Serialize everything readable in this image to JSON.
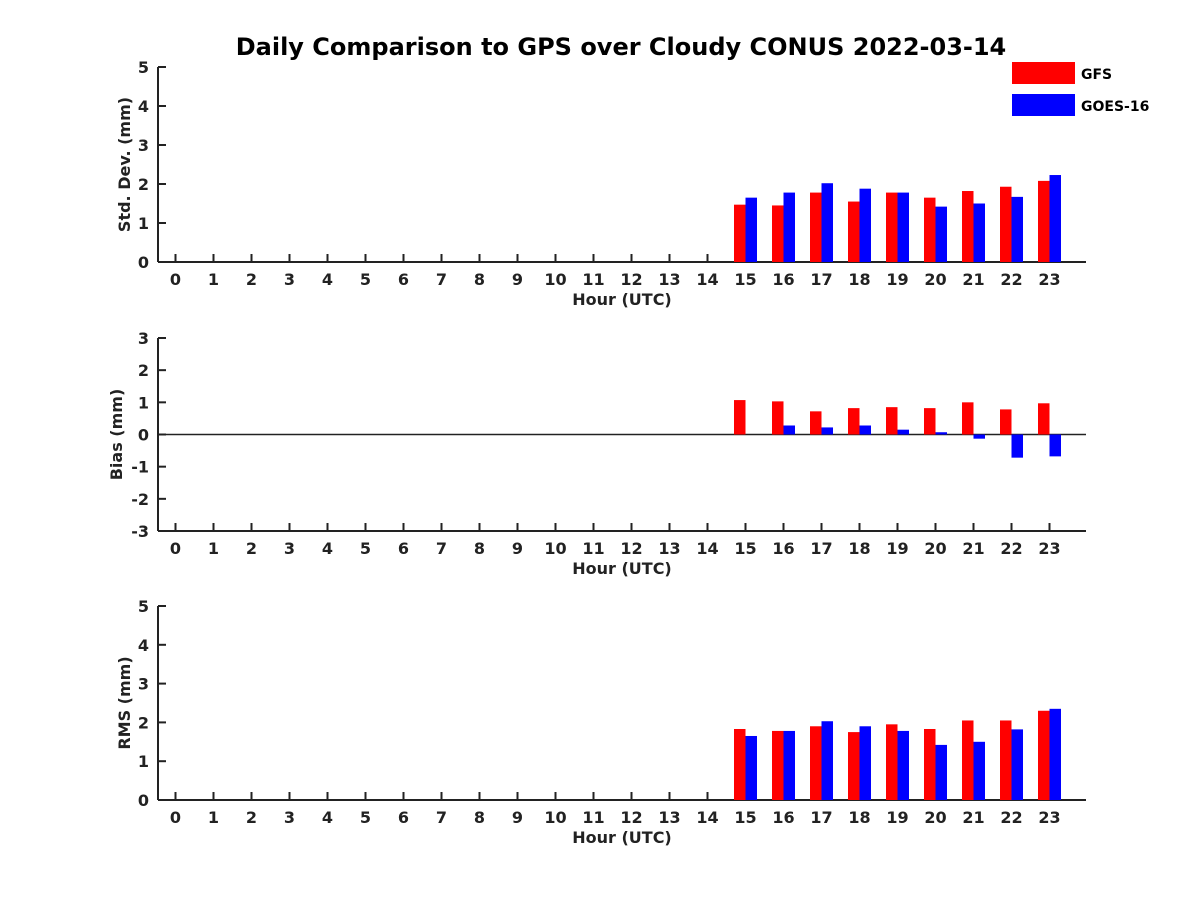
{
  "title": "Daily Comparison to GPS over Cloudy CONUS 2022-03-14",
  "colors": {
    "GFS": "#ff0000",
    "GOES-16": "#0000ff"
  },
  "legend": [
    "GFS",
    "GOES-16"
  ],
  "chart_data": [
    {
      "type": "bar",
      "name": "std-dev",
      "xlabel": "Hour (UTC)",
      "ylabel": "Std. Dev. (mm)",
      "ylim": [
        0,
        5
      ],
      "yticks": [
        0,
        1,
        2,
        3,
        4,
        5
      ],
      "categories": [
        "0",
        "1",
        "2",
        "3",
        "4",
        "5",
        "6",
        "7",
        "8",
        "9",
        "10",
        "11",
        "12",
        "13",
        "14",
        "15",
        "16",
        "17",
        "18",
        "19",
        "20",
        "21",
        "22",
        "23"
      ],
      "series": [
        {
          "name": "GFS",
          "values": [
            null,
            null,
            null,
            null,
            null,
            null,
            null,
            null,
            null,
            null,
            null,
            null,
            null,
            null,
            null,
            1.47,
            1.45,
            1.78,
            1.55,
            1.78,
            1.65,
            1.82,
            1.93,
            2.08
          ]
        },
        {
          "name": "GOES-16",
          "values": [
            null,
            null,
            null,
            null,
            null,
            null,
            null,
            null,
            null,
            null,
            null,
            null,
            null,
            null,
            null,
            1.65,
            1.78,
            2.02,
            1.88,
            1.78,
            1.42,
            1.5,
            1.67,
            2.23
          ]
        }
      ]
    },
    {
      "type": "bar",
      "name": "bias",
      "xlabel": "Hour (UTC)",
      "ylabel": "Bias (mm)",
      "ylim": [
        -3,
        3
      ],
      "yticks": [
        -3,
        -2,
        -1,
        0,
        1,
        2,
        3
      ],
      "categories": [
        "0",
        "1",
        "2",
        "3",
        "4",
        "5",
        "6",
        "7",
        "8",
        "9",
        "10",
        "11",
        "12",
        "13",
        "14",
        "15",
        "16",
        "17",
        "18",
        "19",
        "20",
        "21",
        "22",
        "23"
      ],
      "series": [
        {
          "name": "GFS",
          "values": [
            null,
            null,
            null,
            null,
            null,
            null,
            null,
            null,
            null,
            null,
            null,
            null,
            null,
            null,
            null,
            1.07,
            1.03,
            0.72,
            0.82,
            0.85,
            0.82,
            1.0,
            0.78,
            0.97
          ]
        },
        {
          "name": "GOES-16",
          "values": [
            null,
            null,
            null,
            null,
            null,
            null,
            null,
            null,
            null,
            null,
            null,
            null,
            null,
            null,
            null,
            null,
            0.28,
            0.22,
            0.28,
            0.15,
            0.07,
            -0.13,
            -0.72,
            -0.68
          ]
        }
      ]
    },
    {
      "type": "bar",
      "name": "rms",
      "xlabel": "Hour (UTC)",
      "ylabel": "RMS (mm)",
      "ylim": [
        0,
        5
      ],
      "yticks": [
        0,
        1,
        2,
        3,
        4,
        5
      ],
      "categories": [
        "0",
        "1",
        "2",
        "3",
        "4",
        "5",
        "6",
        "7",
        "8",
        "9",
        "10",
        "11",
        "12",
        "13",
        "14",
        "15",
        "16",
        "17",
        "18",
        "19",
        "20",
        "21",
        "22",
        "23"
      ],
      "series": [
        {
          "name": "GFS",
          "values": [
            null,
            null,
            null,
            null,
            null,
            null,
            null,
            null,
            null,
            null,
            null,
            null,
            null,
            null,
            null,
            1.83,
            1.78,
            1.9,
            1.75,
            1.95,
            1.83,
            2.05,
            2.05,
            2.3
          ]
        },
        {
          "name": "GOES-16",
          "values": [
            null,
            null,
            null,
            null,
            null,
            null,
            null,
            null,
            null,
            null,
            null,
            null,
            null,
            null,
            null,
            1.65,
            1.78,
            2.03,
            1.9,
            1.78,
            1.42,
            1.5,
            1.82,
            2.35
          ]
        }
      ]
    }
  ]
}
